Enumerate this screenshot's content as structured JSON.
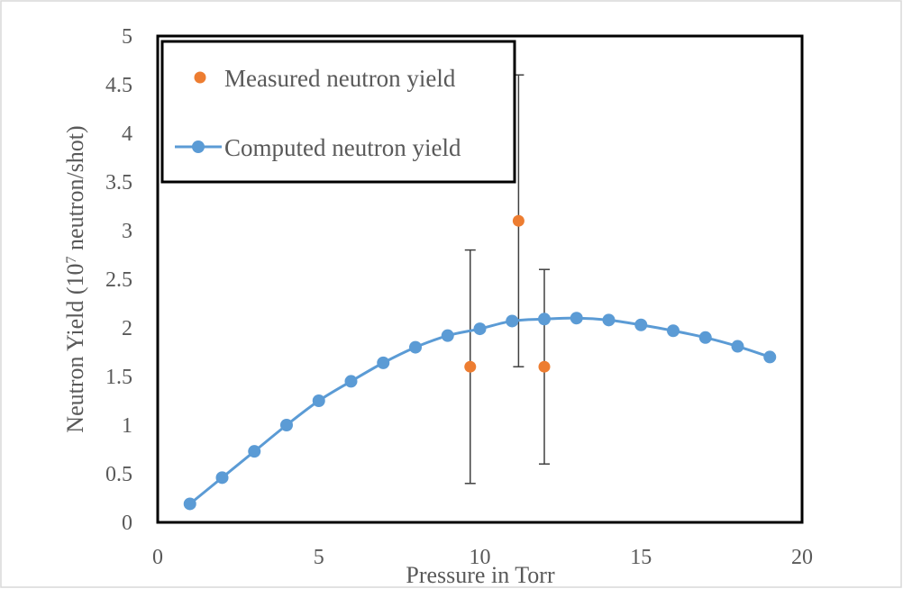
{
  "chart_data": {
    "type": "scatter",
    "xlabel": "Pressure in Torr",
    "ylabel_main": "Neutron Yield  (10",
    "ylabel_exp": "7",
    "ylabel_rest": " neutron/shot)",
    "xlim": [
      0,
      20
    ],
    "ylim": [
      0,
      5
    ],
    "x_ticks": [
      0,
      5,
      10,
      15,
      20
    ],
    "x_tick_labels": [
      "0",
      "5",
      "10",
      "15",
      "20"
    ],
    "y_ticks": [
      0,
      0.5,
      1,
      1.5,
      2,
      2.5,
      3,
      3.5,
      4,
      4.5,
      5
    ],
    "y_tick_labels": [
      "0",
      "0.5",
      "1",
      "1.5",
      "2",
      "2.5",
      "3",
      "3.5",
      "4",
      "4.5",
      "5"
    ],
    "grid": false,
    "legend_position": "top-left",
    "series": [
      {
        "name": "Measured neutron yield",
        "kind": "scatter",
        "color": "#ED7D31",
        "points": [
          {
            "x": 9.7,
            "y": 1.6,
            "err_low": 0.4,
            "err_high": 2.8
          },
          {
            "x": 11.2,
            "y": 3.1,
            "err_low": 1.6,
            "err_high": 4.6
          },
          {
            "x": 12.0,
            "y": 1.6,
            "err_low": 0.6,
            "err_high": 2.6
          }
        ]
      },
      {
        "name": "Computed neutron yield",
        "kind": "line",
        "color": "#5B9BD5",
        "x": [
          1,
          2,
          3,
          4,
          5,
          6,
          7,
          8,
          9,
          10,
          11,
          12,
          13,
          14,
          15,
          16,
          17,
          18,
          19
        ],
        "y": [
          0.19,
          0.46,
          0.73,
          1.0,
          1.25,
          1.45,
          1.64,
          1.8,
          1.92,
          1.99,
          2.07,
          2.09,
          2.1,
          2.08,
          2.03,
          1.97,
          1.9,
          1.81,
          1.7
        ]
      }
    ]
  }
}
